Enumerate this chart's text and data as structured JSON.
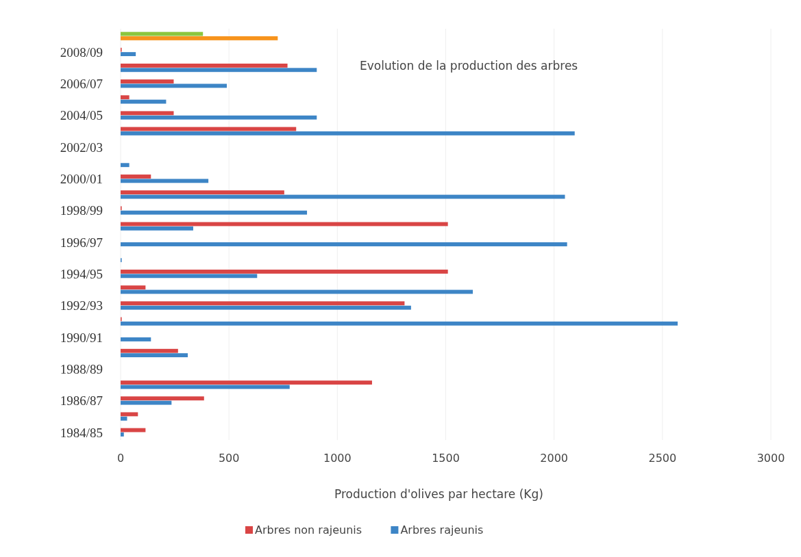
{
  "chart_data": {
    "type": "bar",
    "orientation": "horizontal",
    "title": "Evolution de la production des arbres",
    "xlabel": "Production d'olives par hectare (Kg)",
    "categories": [
      null,
      "2008/09",
      null,
      "2006/07",
      null,
      "2004/05",
      null,
      "2002/03",
      null,
      "2000/01",
      null,
      "1998/99",
      null,
      "1996/97",
      null,
      "1994/95",
      null,
      "1992/93",
      null,
      "1990/91",
      null,
      "1988/89",
      null,
      "1986/87",
      null,
      "1984/85"
    ],
    "series": [
      {
        "name": "Arbres non rajeunis",
        "color": "#d94545",
        "colors": [
          "#8cc63f",
          "#d94545",
          "#d94545",
          "#d94545",
          "#d94545",
          "#d94545",
          "#d94545",
          null,
          null,
          "#d94545",
          "#d94545",
          "#d94545",
          "#d94545",
          null,
          null,
          "#d94545",
          "#d94545",
          "#d94545",
          "#d94545",
          null,
          "#d94545",
          null,
          "#d94545",
          "#d94545",
          "#d94545",
          "#d94545"
        ],
        "values": [
          380,
          5,
          770,
          245,
          40,
          245,
          810,
          null,
          null,
          140,
          755,
          5,
          1510,
          null,
          null,
          1510,
          115,
          1310,
          5,
          null,
          265,
          null,
          1160,
          385,
          80,
          115
        ]
      },
      {
        "name": "Arbres rajeunis",
        "color": "#3d85c6",
        "colors": [
          "#f7941d",
          "#3d85c6",
          "#3d85c6",
          "#3d85c6",
          "#3d85c6",
          "#3d85c6",
          "#3d85c6",
          null,
          "#3d85c6",
          "#3d85c6",
          "#3d85c6",
          "#3d85c6",
          "#3d85c6",
          "#3d85c6",
          "#3d85c6",
          "#3d85c6",
          "#3d85c6",
          "#3d85c6",
          "#3d85c6",
          "#3d85c6",
          "#3d85c6",
          null,
          "#3d85c6",
          "#3d85c6",
          "#3d85c6",
          "#3d85c6"
        ],
        "values": [
          725,
          70,
          905,
          490,
          210,
          905,
          2095,
          null,
          40,
          405,
          2050,
          860,
          335,
          2060,
          5,
          630,
          1625,
          1340,
          2570,
          140,
          310,
          null,
          780,
          235,
          30,
          15
        ]
      }
    ],
    "xlim": [
      0,
      3000
    ],
    "xticks": [
      0,
      500,
      1000,
      1500,
      2000,
      2500,
      3000
    ],
    "grid": "x",
    "legend": "bottom"
  }
}
